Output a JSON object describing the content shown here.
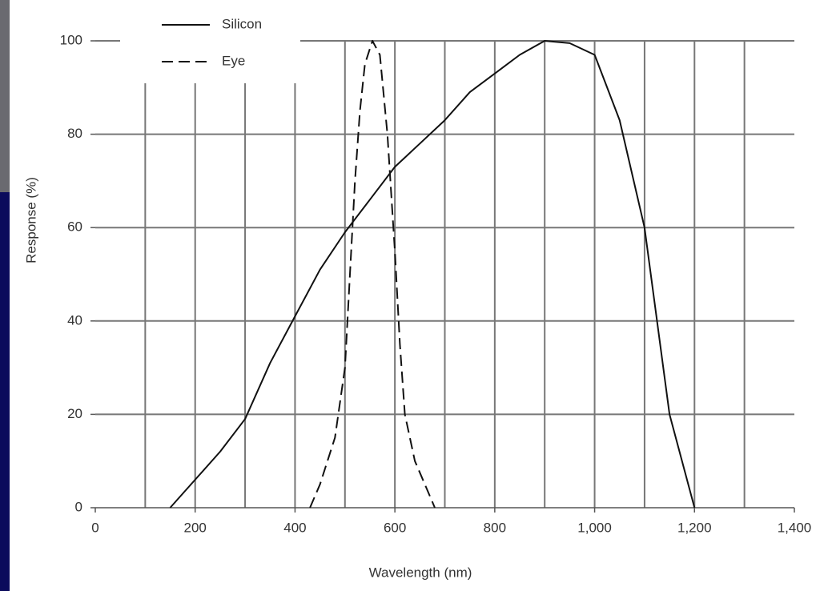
{
  "chart_data": {
    "type": "line",
    "xlabel": "Wavelength (nm)",
    "ylabel": "Response (%)",
    "xlim": [
      0,
      1400
    ],
    "ylim": [
      0,
      100
    ],
    "xticks": [
      0,
      200,
      400,
      600,
      800,
      {
        "value": 1000,
        "label": "1,000"
      },
      {
        "value": 1200,
        "label": "1,200"
      },
      {
        "value": 1400,
        "label": "1,400"
      }
    ],
    "yticks": [
      0,
      20,
      40,
      60,
      80,
      100
    ],
    "xgrid": [
      100,
      200,
      300,
      400,
      500,
      600,
      700,
      800,
      900,
      1000,
      1100,
      1200,
      1300
    ],
    "grid": true,
    "legend": "upper left",
    "series": [
      {
        "name": "Silicon",
        "color": "#111111",
        "dash": "solid",
        "x": [
          150,
          200,
          250,
          300,
          350,
          400,
          450,
          500,
          550,
          600,
          650,
          700,
          750,
          800,
          850,
          900,
          950,
          1000,
          1050,
          1100,
          1150,
          1200
        ],
        "values": [
          0,
          6,
          12,
          19,
          31,
          41,
          51,
          59,
          66,
          73,
          78,
          83,
          89,
          93,
          97,
          100,
          99.5,
          97,
          83,
          60,
          20,
          0
        ]
      },
      {
        "name": "Eye",
        "color": "#111111",
        "dash": "dashed",
        "x": [
          430,
          450,
          480,
          500,
          510,
          520,
          530,
          540,
          555,
          570,
          585,
          600,
          610,
          620,
          640,
          660,
          680
        ],
        "values": [
          0,
          5,
          15,
          30,
          50,
          70,
          85,
          95,
          100,
          97,
          80,
          55,
          35,
          20,
          10,
          5,
          0
        ]
      }
    ]
  }
}
